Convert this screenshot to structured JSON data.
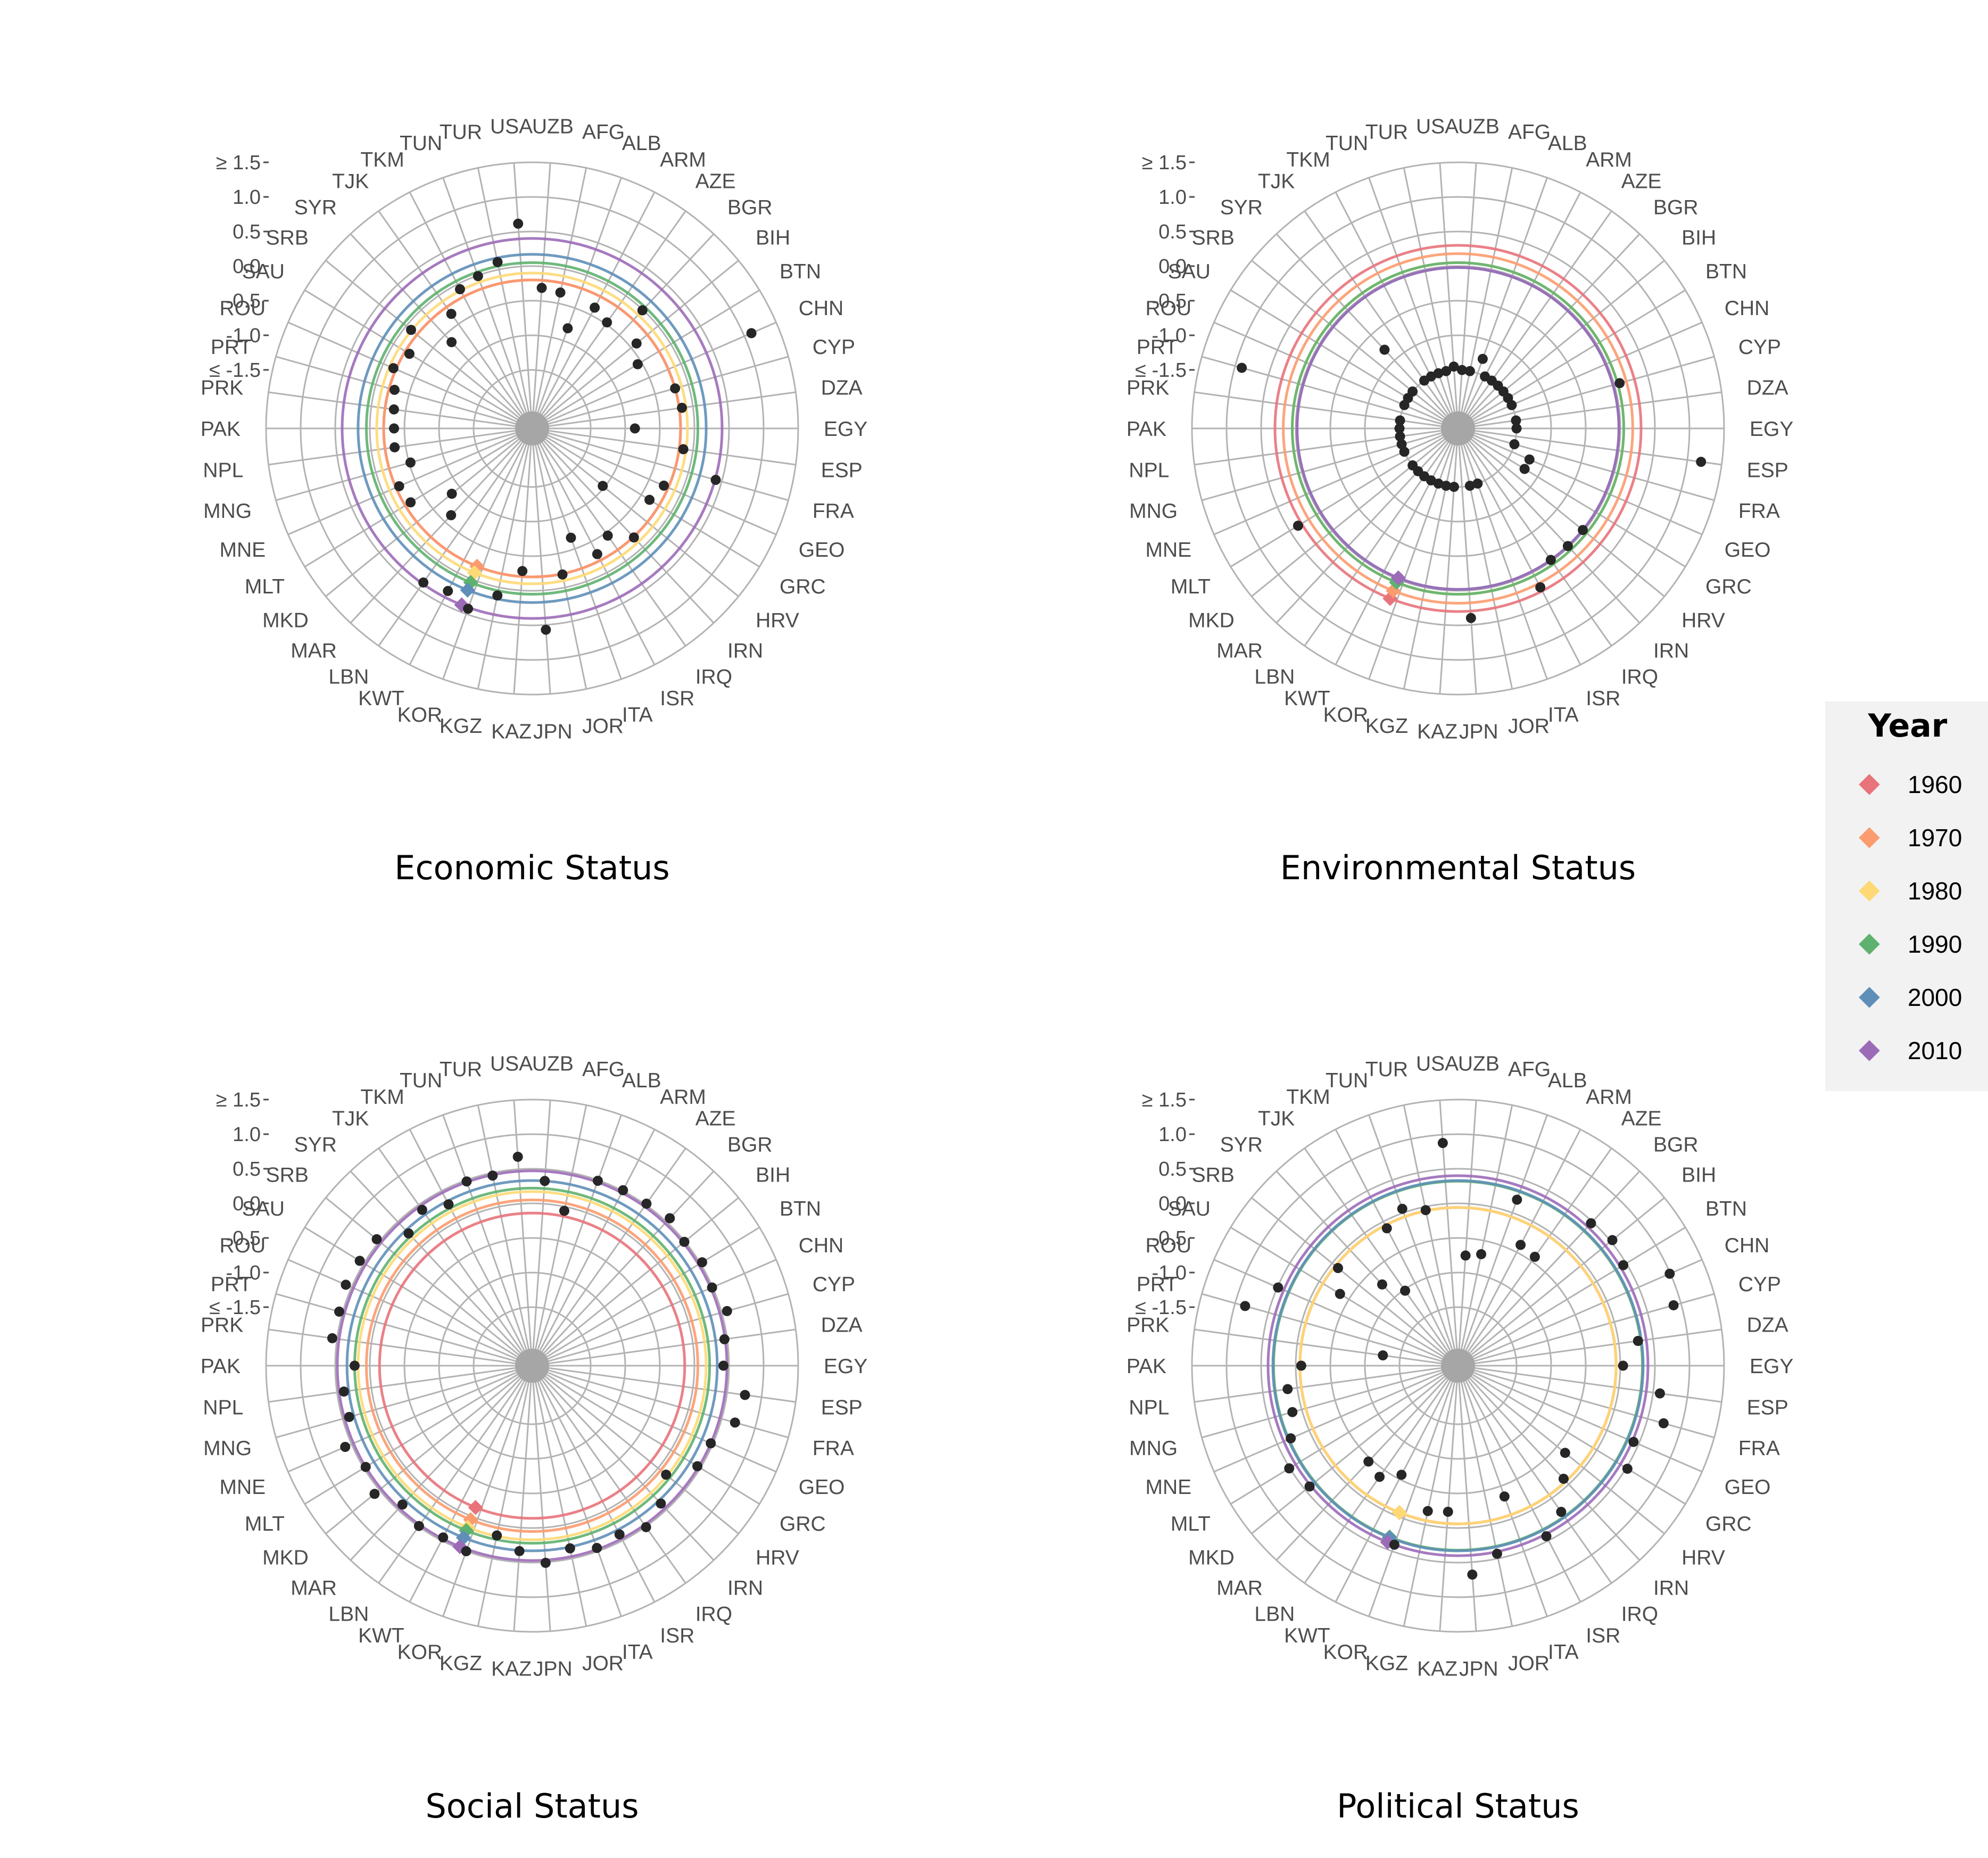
{
  "chart_data": {
    "type": "radial-scatter",
    "countries": [
      "UZB",
      "AFG",
      "ALB",
      "ARM",
      "AZE",
      "BGR",
      "BIH",
      "BTN",
      "CHN",
      "CYP",
      "DZA",
      "EGY",
      "ESP",
      "FRA",
      "GEO",
      "GRC",
      "HRV",
      "IRN",
      "IRQ",
      "ISR",
      "ITA",
      "JOR",
      "JPN",
      "KAZ",
      "KGZ",
      "KOR",
      "KWT",
      "LBN",
      "MAR",
      "MKD",
      "MLT",
      "MNE",
      "MNG",
      "NPL",
      "PAK",
      "PRK",
      "PRT",
      "ROU",
      "SAU",
      "SRB",
      "SYR",
      "TJK",
      "TKM",
      "TUN",
      "TUR",
      "USA"
    ],
    "y_axis": {
      "min": -1.5,
      "max": 1.5,
      "ticks": [
        1.5,
        1.0,
        0.5,
        0.0,
        -0.5,
        -1.0,
        -1.5
      ],
      "tick_labels": [
        "≥ 1.5",
        "1.0",
        "0.5",
        "0.0",
        "-0.5",
        "-1.0",
        "≤ -1.5"
      ]
    },
    "legend": {
      "title": "Year",
      "items": [
        {
          "label": "1960",
          "color": "#e8737b"
        },
        {
          "label": "1970",
          "color": "#fc9b6e"
        },
        {
          "label": "1980",
          "color": "#fed975"
        },
        {
          "label": "1990",
          "color": "#5fb16f"
        },
        {
          "label": "2000",
          "color": "#5f8fb8"
        },
        {
          "label": "2010",
          "color": "#9c6bb8"
        }
      ]
    },
    "panels": [
      {
        "title": "Economic Status",
        "year_means": [
          {
            "year": "1960",
            "value": -0.2,
            "color": "#e8737b"
          },
          {
            "year": "1970",
            "value": -0.2,
            "color": "#fc9b6e"
          },
          {
            "year": "1980",
            "value": -0.1,
            "color": "#fed975"
          },
          {
            "year": "1990",
            "value": 0.05,
            "color": "#5fb16f"
          },
          {
            "year": "2000",
            "value": 0.17,
            "color": "#5f8fb8"
          },
          {
            "year": "2010",
            "value": 0.4,
            "color": "#9c6bb8"
          }
        ],
        "points": [
          -0.31,
          -0.34,
          -0.81,
          -0.38,
          -0.47,
          -0.01,
          -0.4,
          -0.56,
          1.11,
          -0.2,
          -0.16,
          -0.86,
          -0.14,
          0.41,
          -0.27,
          -0.36,
          -1.03,
          -0.19,
          -0.45,
          -0.3,
          -0.67,
          -0.19,
          0.57,
          -0.28,
          0.12,
          0.42,
          0.3,
          0.38,
          -0.63,
          -0.85,
          -0.29,
          -0.25,
          -0.52,
          -0.34,
          -0.35,
          -0.33,
          -0.28,
          -0.16,
          -0.27,
          -0.09,
          -0.64,
          -0.32,
          -0.08,
          -0.01,
          0.11,
          0.62
        ]
      },
      {
        "title": "Environmental Status",
        "year_means": [
          {
            "year": "1960",
            "value": 0.3,
            "color": "#e8737b"
          },
          {
            "year": "1970",
            "value": 0.18,
            "color": "#fc9b6e"
          },
          {
            "year": "1980",
            "value": 0.05,
            "color": "#fed975"
          },
          {
            "year": "1990",
            "value": 0.05,
            "color": "#5fb16f"
          },
          {
            "year": "2000",
            "value": -0.02,
            "color": "#5f8fb8"
          },
          {
            "year": "2010",
            "value": -0.02,
            "color": "#9c6bb8"
          }
        ],
        "points": [
          -1.5,
          -1.5,
          -1.28,
          -1.5,
          -1.5,
          -1.5,
          -1.5,
          -1.5,
          -1.5,
          0.08,
          -1.5,
          -1.5,
          1.2,
          -1.5,
          -1.22,
          -1.22,
          -0.02,
          -0.02,
          -0.02,
          0.24,
          -1.5,
          -1.5,
          0.4,
          -1.5,
          -1.5,
          -1.5,
          -1.5,
          -1.5,
          -1.5,
          -1.5,
          0.36,
          -1.5,
          -1.5,
          -1.5,
          -1.5,
          -1.5,
          0.9,
          -1.5,
          -1.5,
          -1.5,
          -0.79,
          -1.5,
          -1.5,
          -1.5,
          -1.5,
          -1.45
        ]
      },
      {
        "title": "Social Status",
        "year_means": [
          {
            "year": "1960",
            "value": -0.14,
            "color": "#e8737b"
          },
          {
            "year": "1970",
            "value": 0.05,
            "color": "#fc9b6e"
          },
          {
            "year": "1980",
            "value": 0.17,
            "color": "#fed975"
          },
          {
            "year": "1990",
            "value": 0.22,
            "color": "#5fb16f"
          },
          {
            "year": "2000",
            "value": 0.33,
            "color": "#5f8fb8"
          },
          {
            "year": "2010",
            "value": 0.47,
            "color": "#9c6bb8"
          }
        ],
        "points": [
          0.33,
          -0.06,
          0.49,
          0.51,
          0.52,
          0.57,
          0.49,
          0.53,
          0.49,
          0.58,
          0.46,
          0.42,
          0.76,
          0.7,
          0.47,
          0.45,
          0.15,
          0.38,
          0.51,
          0.4,
          0.45,
          0.35,
          0.51,
          0.34,
          0.16,
          0.5,
          0.45,
          0.49,
          0.4,
          0.59,
          0.47,
          0.6,
          0.4,
          0.4,
          0.22,
          0.57,
          0.55,
          0.59,
          0.57,
          0.55,
          0.27,
          0.41,
          0.28,
          0.48,
          0.46,
          0.68
        ]
      },
      {
        "title": "Political Status",
        "year_means": [
          {
            "year": "1960",
            "value": -0.06,
            "color": "#e8737b"
          },
          {
            "year": "1970",
            "value": -0.06,
            "color": "#fc9b6e"
          },
          {
            "year": "1980",
            "value": -0.06,
            "color": "#fed975"
          },
          {
            "year": "1990",
            "value": 0.32,
            "color": "#5fb16f"
          },
          {
            "year": "2000",
            "value": 0.33,
            "color": "#5f8fb8"
          },
          {
            "year": "2010",
            "value": 0.4,
            "color": "#9c6bb8"
          }
        ],
        "points": [
          -0.75,
          -0.7,
          0.2,
          -0.38,
          -0.42,
          0.47,
          0.53,
          0.45,
          0.99,
          0.89,
          0.28,
          0.04,
          0.6,
          0.74,
          0.42,
          0.52,
          -0.35,
          -0.11,
          0.24,
          0.43,
          -0.34,
          0.43,
          0.68,
          -0.23,
          -0.2,
          0.4,
          -0.57,
          -0.38,
          -0.45,
          0.42,
          0.51,
          0.29,
          0.14,
          0.14,
          -0.08,
          -1.25,
          0.85,
          0.49,
          -0.35,
          -0.11,
          -0.74,
          -1.02,
          -0.11,
          0.06,
          -0.05,
          0.88
        ]
      }
    ]
  }
}
